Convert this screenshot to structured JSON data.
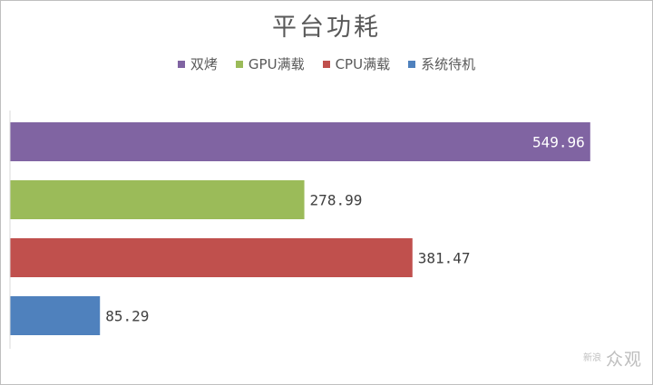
{
  "chart_data": {
    "type": "bar",
    "orientation": "horizontal",
    "title": "平台功耗",
    "legend_position": "top",
    "grid": false,
    "xlim": [
      0,
      600
    ],
    "bars": [
      {
        "name": "双烤",
        "value": 549.96,
        "label": "549.96",
        "color": "#8064a2",
        "label_inside": true
      },
      {
        "name": "GPU满载",
        "value": 278.99,
        "label": "278.99",
        "color": "#9bbb59",
        "label_inside": false
      },
      {
        "name": "CPU满载",
        "value": 381.47,
        "label": "381.47",
        "color": "#c0504d",
        "label_inside": false
      },
      {
        "name": "系统待机",
        "value": 85.29,
        "label": "85.29",
        "color": "#4f81bd",
        "label_inside": false
      }
    ]
  },
  "watermark": {
    "logo": "新浪",
    "text": "众观"
  }
}
